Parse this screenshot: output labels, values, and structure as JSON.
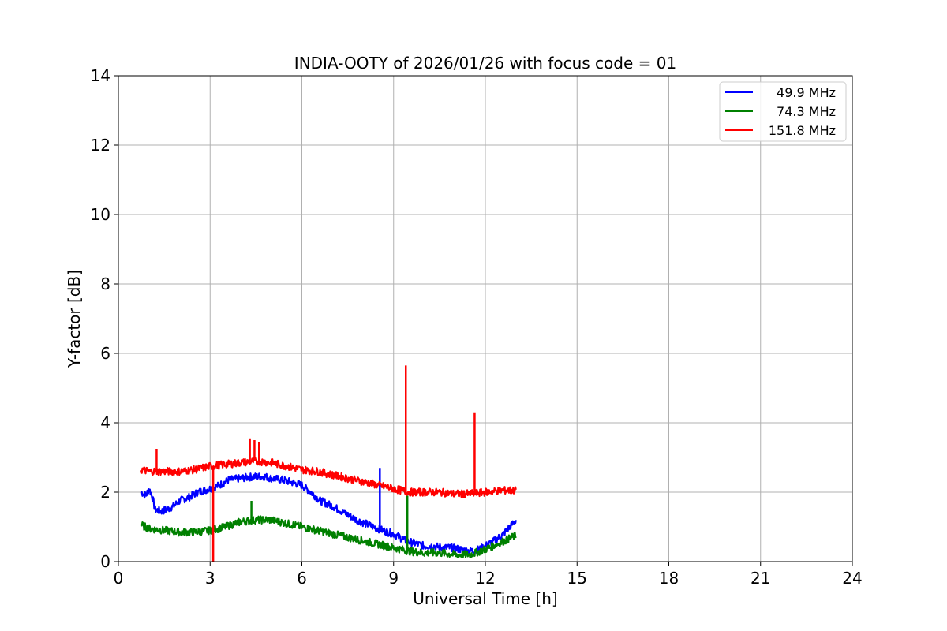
{
  "chart_data": {
    "type": "line",
    "title": "INDIA-OOTY of 2026/01/26 with focus code = 01",
    "xlabel": "Universal Time [h]",
    "ylabel": "Y-factor [dB]",
    "xlim": [
      0,
      24
    ],
    "ylim": [
      0,
      14
    ],
    "xticks": [
      0,
      3,
      6,
      9,
      12,
      15,
      18,
      21,
      24
    ],
    "yticks": [
      0,
      2,
      4,
      6,
      8,
      10,
      12,
      14
    ],
    "grid": true,
    "legend_position": "top-right",
    "series": [
      {
        "name": "49.9 MHz",
        "color": "#0000ff",
        "x": [
          0.75,
          0.9,
          1.0,
          1.1,
          1.2,
          1.4,
          1.6,
          1.8,
          2.0,
          2.3,
          2.6,
          3.0,
          3.3,
          3.6,
          4.0,
          4.4,
          4.8,
          5.0,
          5.4,
          5.8,
          6.0,
          6.3,
          6.6,
          7.0,
          7.4,
          7.8,
          8.2,
          8.5,
          8.8,
          9.0,
          9.2,
          9.4,
          9.6,
          9.8,
          10.0,
          10.3,
          10.6,
          10.9,
          11.2,
          11.5,
          11.8,
          12.0,
          12.3,
          12.6,
          12.8,
          13.0
        ],
        "y": [
          2.0,
          1.9,
          2.1,
          1.9,
          1.5,
          1.45,
          1.5,
          1.6,
          1.75,
          1.85,
          2.0,
          2.1,
          2.2,
          2.35,
          2.4,
          2.45,
          2.45,
          2.4,
          2.35,
          2.25,
          2.2,
          2.0,
          1.75,
          1.6,
          1.4,
          1.2,
          1.05,
          0.95,
          0.85,
          0.8,
          0.7,
          0.6,
          0.55,
          0.5,
          0.45,
          0.45,
          0.4,
          0.4,
          0.35,
          0.3,
          0.35,
          0.45,
          0.6,
          0.8,
          1.0,
          1.2
        ]
      },
      {
        "name": "74.3 MHz",
        "color": "#008000",
        "x": [
          0.75,
          1.0,
          1.5,
          2.0,
          2.5,
          3.0,
          3.5,
          4.0,
          4.5,
          5.0,
          5.5,
          6.0,
          6.5,
          7.0,
          7.5,
          8.0,
          8.5,
          9.0,
          9.5,
          10.0,
          10.5,
          11.0,
          11.5,
          12.0,
          12.5,
          13.0
        ],
        "y": [
          1.05,
          0.95,
          0.9,
          0.85,
          0.85,
          0.9,
          1.0,
          1.15,
          1.2,
          1.2,
          1.1,
          1.0,
          0.9,
          0.8,
          0.7,
          0.6,
          0.5,
          0.4,
          0.3,
          0.25,
          0.25,
          0.2,
          0.2,
          0.35,
          0.55,
          0.75
        ]
      },
      {
        "name": "151.8 MHz",
        "color": "#ff0000",
        "x": [
          0.75,
          1.0,
          1.5,
          2.0,
          2.5,
          3.0,
          3.5,
          4.0,
          4.5,
          5.0,
          5.5,
          6.0,
          6.5,
          7.0,
          7.5,
          8.0,
          8.5,
          9.0,
          9.5,
          10.0,
          10.5,
          11.0,
          11.5,
          12.0,
          12.5,
          13.0
        ],
        "y": [
          2.65,
          2.6,
          2.6,
          2.6,
          2.65,
          2.75,
          2.8,
          2.85,
          2.9,
          2.85,
          2.75,
          2.65,
          2.6,
          2.5,
          2.4,
          2.3,
          2.2,
          2.1,
          2.0,
          2.0,
          2.0,
          1.95,
          1.95,
          2.0,
          2.05,
          2.05
        ]
      }
    ],
    "spikes": [
      {
        "series": "151.8 MHz",
        "x": 9.4,
        "from": 2.0,
        "to": 5.65
      },
      {
        "series": "151.8 MHz",
        "x": 11.65,
        "from": 1.95,
        "to": 4.3
      },
      {
        "series": "151.8 MHz",
        "x": 3.1,
        "from": 2.7,
        "to": 0.0
      },
      {
        "series": "151.8 MHz",
        "x": 4.3,
        "from": 2.9,
        "to": 3.55
      },
      {
        "series": "151.8 MHz",
        "x": 4.45,
        "from": 2.9,
        "to": 3.5
      },
      {
        "series": "151.8 MHz",
        "x": 4.6,
        "from": 2.9,
        "to": 3.45
      },
      {
        "series": "151.8 MHz",
        "x": 1.25,
        "from": 2.6,
        "to": 3.25
      },
      {
        "series": "49.9 MHz",
        "x": 8.55,
        "from": 0.95,
        "to": 2.7
      },
      {
        "series": "74.3 MHz",
        "x": 9.45,
        "from": 0.3,
        "to": 1.9
      },
      {
        "series": "74.3 MHz",
        "x": 4.35,
        "from": 1.2,
        "to": 1.75
      }
    ]
  }
}
